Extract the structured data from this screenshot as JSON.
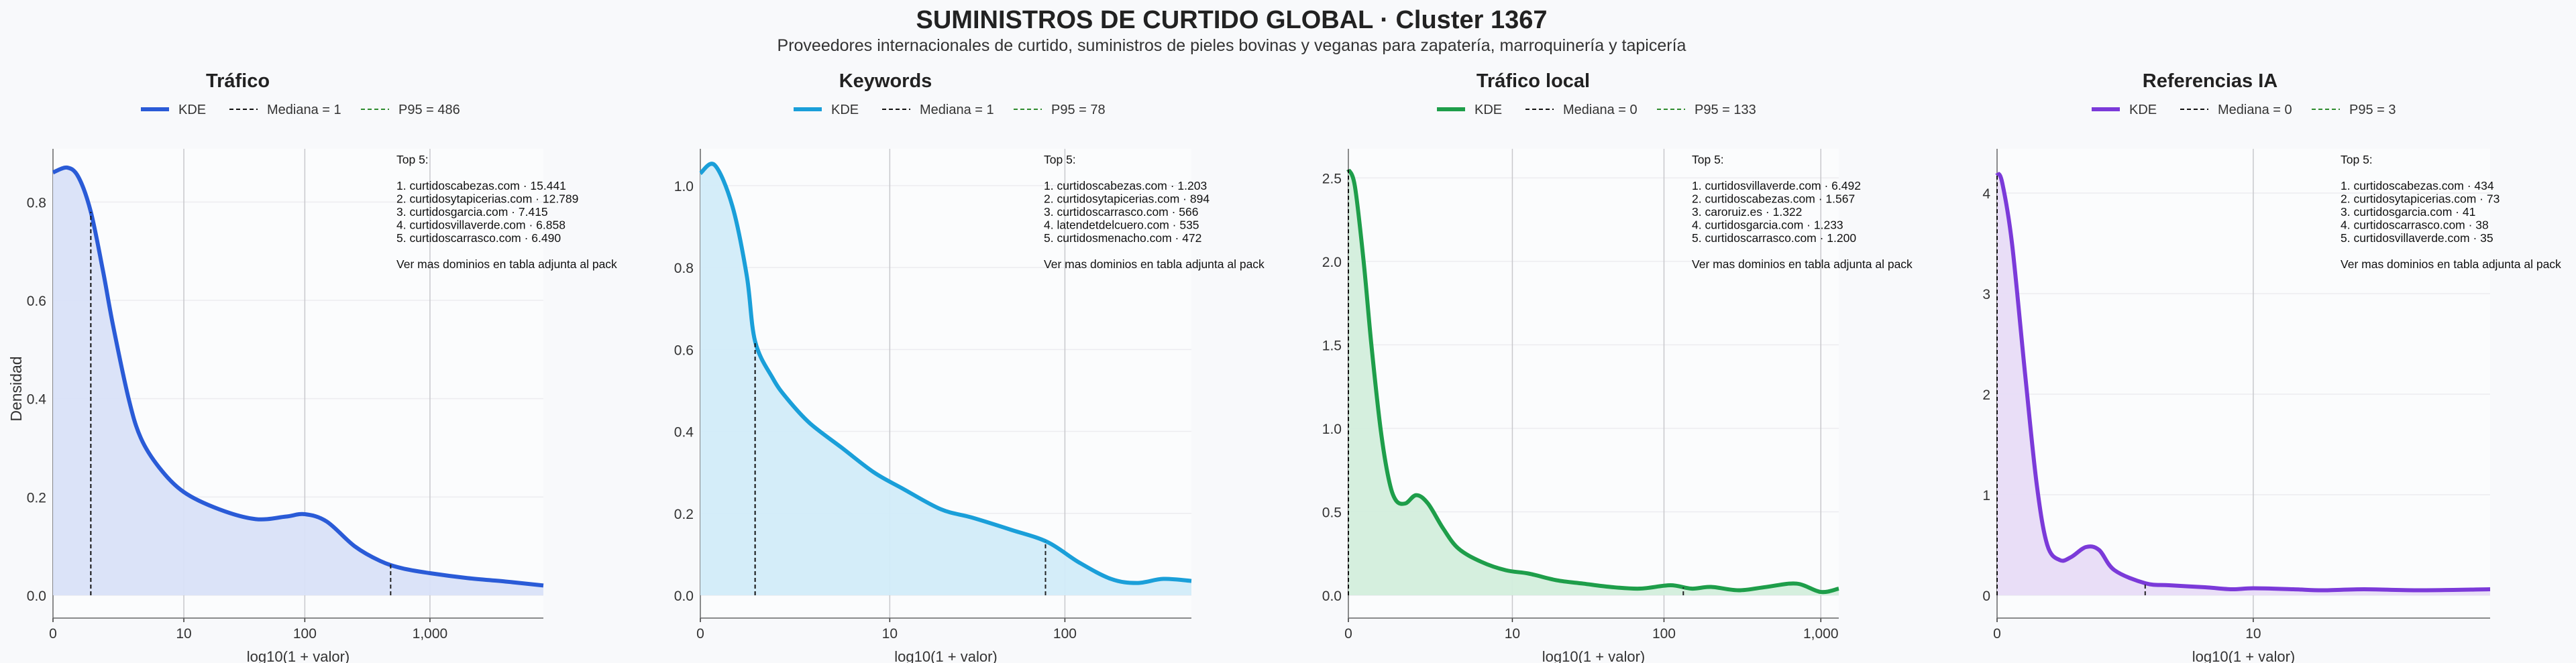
{
  "title": "SUMINISTROS DE CURTIDO GLOBAL · Cluster 1367",
  "subtitle": "Proveedores internacionales de curtido, suministros de pieles bovinas y veganas para zapatería, marroquinería y tapicería",
  "colors": {
    "background": "#f8f9fb",
    "median_line": "#222222",
    "p95_line": "#2e8b2e"
  },
  "chart_data": [
    {
      "type": "area",
      "title": "Tráfico",
      "xlabel": "log10(1 + valor)",
      "ylabel": "Densidad",
      "color": "#2a5bd7",
      "fill": "#d9e2f8",
      "x_scale": "log1p",
      "xlim": [
        0,
        8000
      ],
      "ylim": [
        0,
        0.9
      ],
      "x_ticks": [
        "0",
        "10",
        "100",
        "1,000"
      ],
      "x_tick_values": [
        0,
        10,
        100,
        1000
      ],
      "y_ticks": [
        "0.0",
        "0.2",
        "0.4",
        "0.6",
        "0.8"
      ],
      "y_tick_values": [
        0,
        0.2,
        0.4,
        0.6,
        0.8
      ],
      "legend": [
        "KDE",
        "Mediana = 1",
        "P95 = 486"
      ],
      "median": 1,
      "p95": 486,
      "x": [
        0,
        0.3,
        0.6,
        1,
        1.5,
        2,
        3,
        4,
        6,
        10,
        20,
        40,
        70,
        100,
        150,
        250,
        400,
        600,
        1000,
        2000,
        4000,
        8000
      ],
      "y": [
        0.86,
        0.87,
        0.85,
        0.78,
        0.66,
        0.55,
        0.4,
        0.32,
        0.26,
        0.21,
        0.175,
        0.155,
        0.16,
        0.165,
        0.15,
        0.1,
        0.07,
        0.055,
        0.045,
        0.035,
        0.028,
        0.02
      ],
      "annotation": [
        "Top 5:",
        "",
        "1. curtidoscabezas.com · 15.441",
        "2. curtidosytapicerias.com · 12.789",
        "3. curtidosgarcia.com · 7.415",
        "4. curtidosvillaverde.com · 6.858",
        "5. curtidoscarrasco.com · 6.490",
        "",
        "Ver mas dominios en tabla adjunta al pack"
      ]
    },
    {
      "type": "area",
      "title": "Keywords",
      "xlabel": "log10(1 + valor)",
      "color": "#1a9fd9",
      "fill": "#d2ecf9",
      "x_scale": "log1p",
      "xlim": [
        0,
        500
      ],
      "ylim": [
        0,
        1.08
      ],
      "x_ticks": [
        "0",
        "10",
        "100"
      ],
      "x_tick_values": [
        0,
        10,
        100
      ],
      "y_ticks": [
        "0.0",
        "0.2",
        "0.4",
        "0.6",
        "0.8",
        "1.0"
      ],
      "y_tick_values": [
        0,
        0.2,
        0.4,
        0.6,
        0.8,
        1.0
      ],
      "legend": [
        "KDE",
        "Mediana = 1",
        "P95 = 78"
      ],
      "median": 1,
      "p95": 78,
      "x": [
        0,
        0.2,
        0.5,
        0.8,
        1,
        1.5,
        2,
        3,
        5,
        8,
        12,
        20,
        30,
        50,
        80,
        120,
        180,
        250,
        350,
        500
      ],
      "y": [
        1.03,
        1.05,
        0.95,
        0.78,
        0.62,
        0.53,
        0.48,
        0.42,
        0.36,
        0.3,
        0.26,
        0.21,
        0.19,
        0.16,
        0.13,
        0.08,
        0.04,
        0.03,
        0.04,
        0.035
      ],
      "annotation": [
        "Top 5:",
        "",
        "1. curtidoscabezas.com · 1.203",
        "2. curtidosytapicerias.com · 894",
        "3. curtidoscarrasco.com · 566",
        "4. latendetdelcuero.com · 535",
        "5. curtidosmenacho.com · 472",
        "",
        "Ver mas dominios en tabla adjunta al pack"
      ]
    },
    {
      "type": "area",
      "title": "Tráfico local",
      "xlabel": "log10(1 + valor)",
      "color": "#1e9e4a",
      "fill": "#d3eedc",
      "x_scale": "log1p",
      "xlim": [
        0,
        1300
      ],
      "ylim": [
        0,
        2.65
      ],
      "x_ticks": [
        "0",
        "10",
        "100",
        "1,000"
      ],
      "x_tick_values": [
        0,
        10,
        100,
        1000
      ],
      "y_ticks": [
        "0.0",
        "0.5",
        "1.0",
        "1.5",
        "2.0",
        "2.5"
      ],
      "y_tick_values": [
        0,
        0.5,
        1.0,
        1.5,
        2.0,
        2.5
      ],
      "legend": [
        "KDE",
        "Mediana = 0",
        "P95 = 133"
      ],
      "median": 0,
      "p95": 133,
      "x": [
        0,
        0.1,
        0.25,
        0.4,
        0.6,
        0.8,
        1,
        1.3,
        1.7,
        2.2,
        3,
        4,
        6,
        9,
        13,
        20,
        30,
        45,
        70,
        110,
        150,
        200,
        300,
        450,
        700,
        1000,
        1300
      ],
      "y": [
        2.55,
        2.45,
        2.0,
        1.5,
        1.0,
        0.7,
        0.57,
        0.55,
        0.6,
        0.55,
        0.4,
        0.28,
        0.2,
        0.15,
        0.13,
        0.09,
        0.07,
        0.05,
        0.04,
        0.06,
        0.04,
        0.05,
        0.03,
        0.05,
        0.07,
        0.02,
        0.04
      ],
      "annotation": [
        "Top 5:",
        "",
        "1. curtidosvillaverde.com · 6.492",
        "2. curtidoscabezas.com · 1.567",
        "3. caroruiz.es · 1.322",
        "4. curtidosgarcia.com · 1.233",
        "5. curtidoscarrasco.com · 1.200",
        "",
        "Ver mas dominios en tabla adjunta al pack"
      ]
    },
    {
      "type": "area",
      "title": "Referencias IA",
      "xlabel": "log10(1 + valor)",
      "color": "#7b3ad9",
      "fill": "#e8dcf7",
      "x_scale": "log1p",
      "xlim": [
        0,
        100
      ],
      "ylim": [
        0,
        4.4
      ],
      "x_ticks": [
        "0",
        "10"
      ],
      "x_tick_values": [
        0,
        10
      ],
      "y_ticks": [
        "0",
        "1",
        "2",
        "3",
        "4"
      ],
      "y_tick_values": [
        0,
        1,
        2,
        3,
        4
      ],
      "legend": [
        "KDE",
        "Mediana = 0",
        "P95 = 3"
      ],
      "median": 0,
      "p95": 3,
      "x": [
        0,
        0.05,
        0.15,
        0.3,
        0.45,
        0.6,
        0.8,
        1,
        1.3,
        1.6,
        2,
        3,
        4,
        6,
        8,
        10,
        15,
        20,
        30,
        50,
        100
      ],
      "y": [
        4.2,
        4.1,
        3.5,
        2.2,
        1.1,
        0.5,
        0.35,
        0.38,
        0.48,
        0.45,
        0.25,
        0.12,
        0.1,
        0.08,
        0.06,
        0.07,
        0.06,
        0.05,
        0.06,
        0.05,
        0.06
      ],
      "annotation": [
        "Top 5:",
        "",
        "1. curtidoscabezas.com · 434",
        "2. curtidosytapicerias.com · 73",
        "3. curtidosgarcia.com · 41",
        "4. curtidoscarrasco.com · 38",
        "5. curtidosvillaverde.com · 35",
        "",
        "Ver mas dominios en tabla adjunta al pack"
      ]
    }
  ]
}
